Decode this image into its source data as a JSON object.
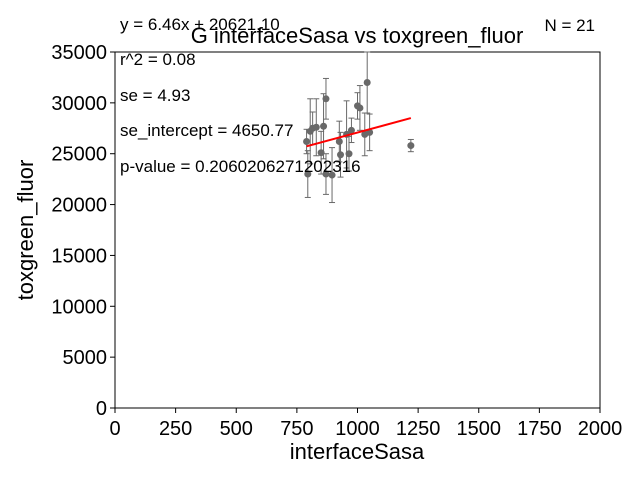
{
  "chart_data": {
    "type": "scatter",
    "title": "G interfaceSasa vs toxgreen_fluor",
    "xlabel": "interfaceSasa",
    "ylabel": "toxgreen_fluor",
    "xlim": [
      0,
      2000
    ],
    "ylim": [
      0,
      35000
    ],
    "xticks": [
      "0",
      "250",
      "500",
      "750",
      "1000",
      "1250",
      "1500",
      "1750",
      "2000"
    ],
    "yticks": [
      "0",
      "5000",
      "10000",
      "15000",
      "20000",
      "25000",
      "30000",
      "35000"
    ],
    "grid": false,
    "annotations": {
      "equation": "y = 6.46x + 20621.10",
      "n": "N = 21",
      "r2": "r^2 = 0.08",
      "se": "se = 4.93",
      "se_intercept": "se_intercept = 4650.77",
      "p_value": "p-value = 0.2060206271202316"
    },
    "fit_line": {
      "slope": 6.46,
      "intercept": 20621.1,
      "x_range": [
        790,
        1220
      ],
      "color": "#ff0000"
    },
    "point_color": "#696969",
    "points": [
      {
        "x": 790,
        "y": 26200,
        "err": 1200
      },
      {
        "x": 795,
        "y": 23000,
        "err": 2300
      },
      {
        "x": 805,
        "y": 27200,
        "err": 3200
      },
      {
        "x": 815,
        "y": 27500,
        "err": 1600
      },
      {
        "x": 830,
        "y": 27600,
        "err": 2800
      },
      {
        "x": 850,
        "y": 25100,
        "err": 2100
      },
      {
        "x": 860,
        "y": 27700,
        "err": 3200
      },
      {
        "x": 870,
        "y": 30400,
        "err": 2000
      },
      {
        "x": 870,
        "y": 23000,
        "err": 2000
      },
      {
        "x": 895,
        "y": 22900,
        "err": 2700
      },
      {
        "x": 925,
        "y": 26200,
        "err": 2000
      },
      {
        "x": 930,
        "y": 24900,
        "err": 2200
      },
      {
        "x": 955,
        "y": 26900,
        "err": 3300
      },
      {
        "x": 965,
        "y": 25000,
        "err": 1700
      },
      {
        "x": 975,
        "y": 27300,
        "err": 1200
      },
      {
        "x": 1000,
        "y": 29700,
        "err": 1300
      },
      {
        "x": 1010,
        "y": 29500,
        "err": 2200
      },
      {
        "x": 1030,
        "y": 26900,
        "err": 2100
      },
      {
        "x": 1040,
        "y": 32000,
        "err": 3000
      },
      {
        "x": 1050,
        "y": 27100,
        "err": 1800
      },
      {
        "x": 1220,
        "y": 25800,
        "err": 600
      }
    ]
  }
}
